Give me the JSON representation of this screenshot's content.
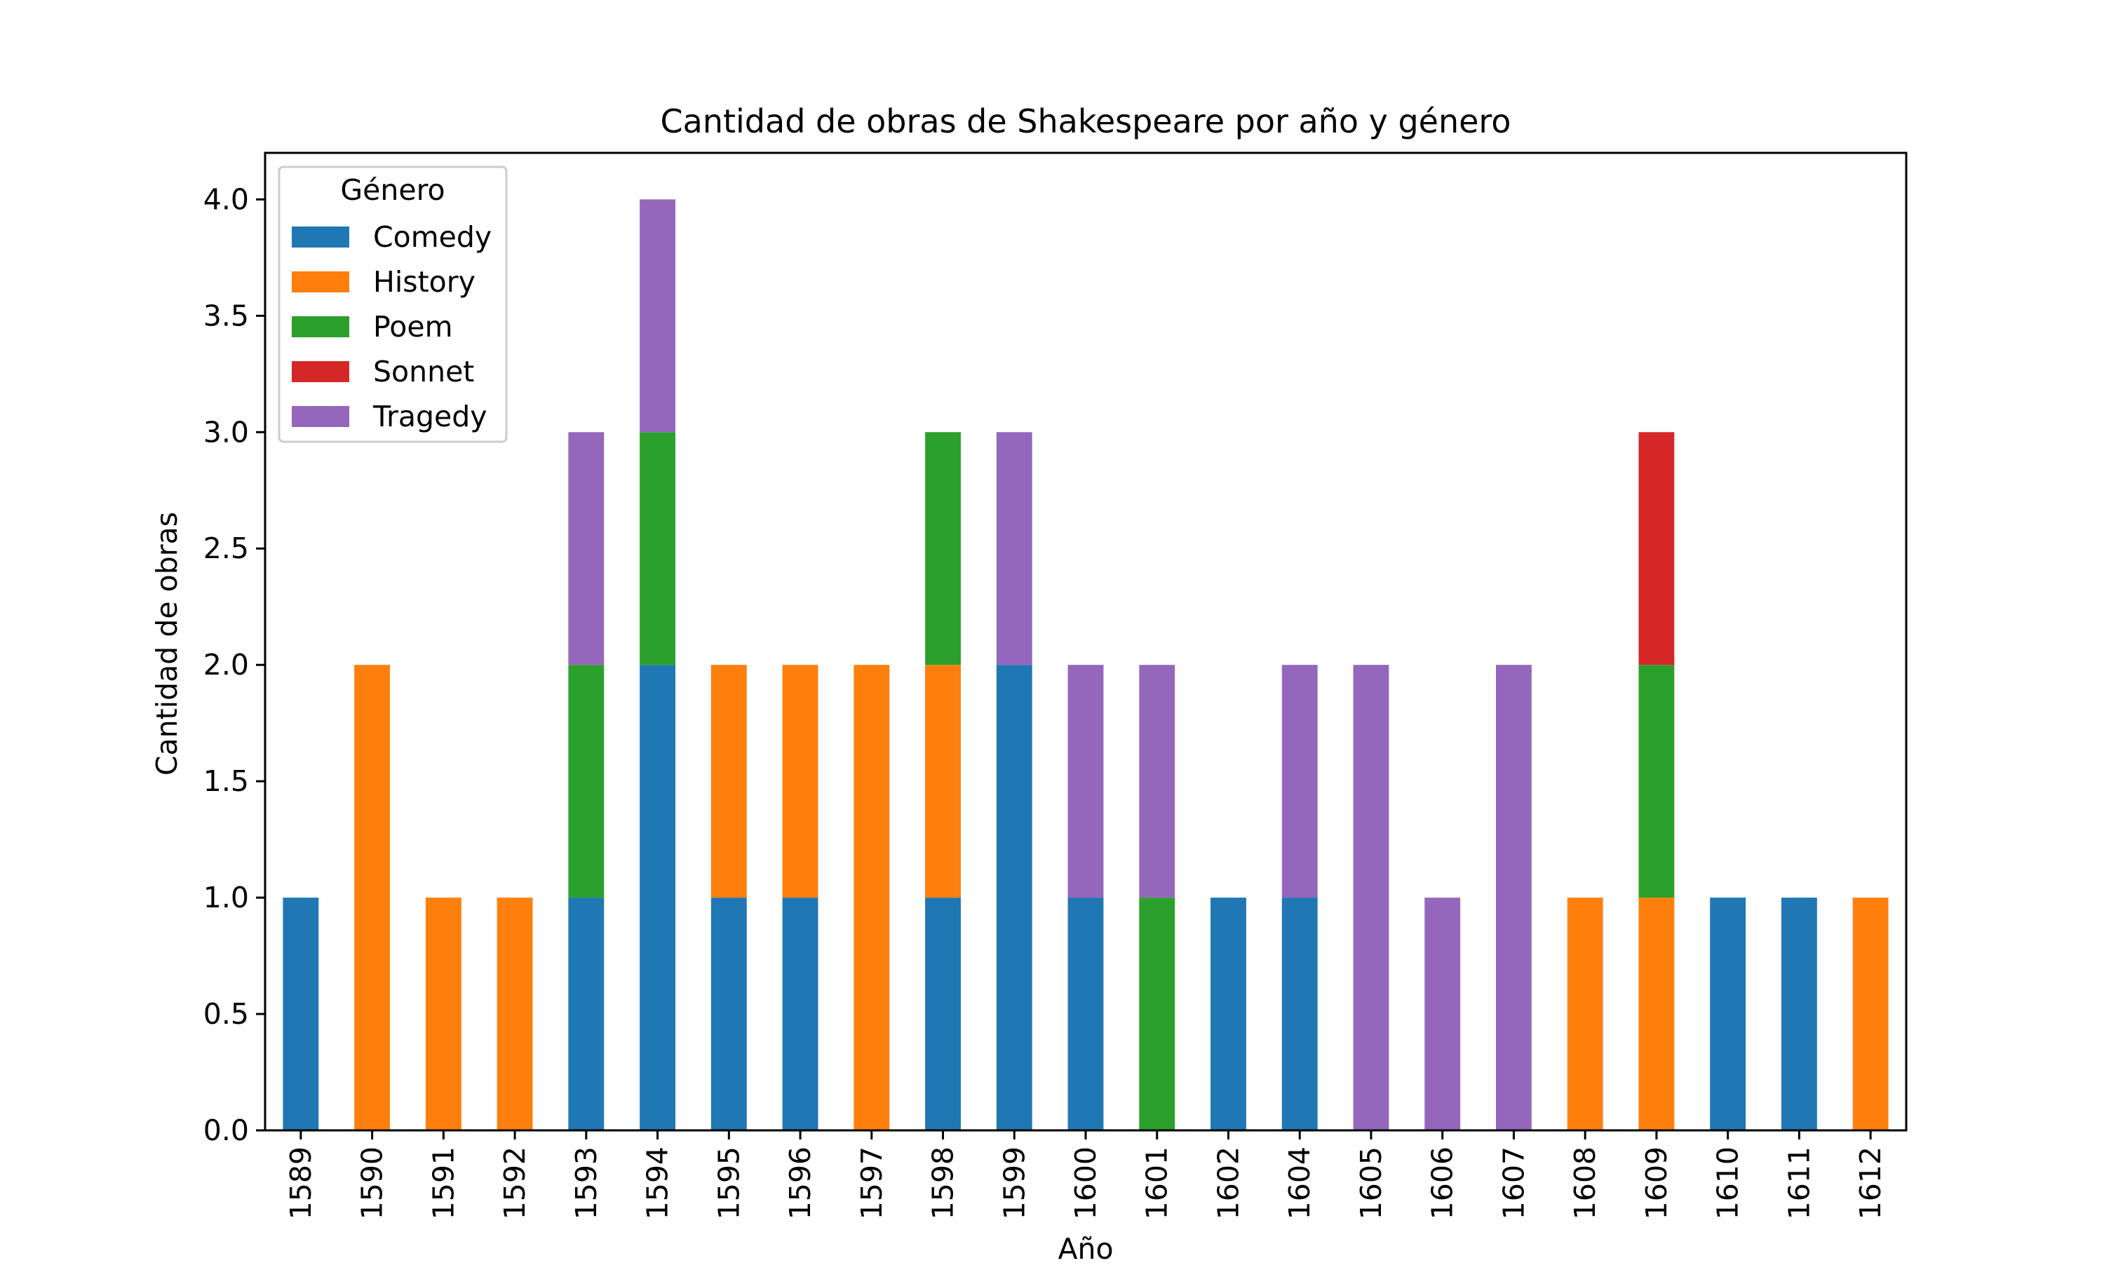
{
  "chart_data": {
    "type": "bar",
    "stacked": true,
    "title": "Cantidad de obras de Shakespeare por año y género",
    "xlabel": "Año",
    "ylabel": "Cantidad de obras",
    "ylim": [
      0,
      4.2
    ],
    "yticks": [
      "0.0",
      "0.5",
      "1.0",
      "1.5",
      "2.0",
      "2.5",
      "3.0",
      "3.5",
      "4.0"
    ],
    "grid": false,
    "legend": {
      "title": "Género",
      "placement": "top-left"
    },
    "categories": [
      "1589",
      "1590",
      "1591",
      "1592",
      "1593",
      "1594",
      "1595",
      "1596",
      "1597",
      "1598",
      "1599",
      "1600",
      "1601",
      "1602",
      "1604",
      "1605",
      "1606",
      "1607",
      "1608",
      "1609",
      "1610",
      "1611",
      "1612"
    ],
    "series": [
      {
        "name": "Comedy",
        "color": "#1f77b4",
        "values": [
          1,
          0,
          0,
          0,
          1,
          2,
          1,
          1,
          0,
          1,
          2,
          1,
          0,
          1,
          1,
          0,
          0,
          0,
          0,
          0,
          1,
          1,
          0
        ]
      },
      {
        "name": "History",
        "color": "#ff7f0e",
        "values": [
          0,
          2,
          1,
          1,
          0,
          0,
          1,
          1,
          2,
          1,
          0,
          0,
          0,
          0,
          0,
          0,
          0,
          0,
          1,
          1,
          0,
          0,
          1
        ]
      },
      {
        "name": "Poem",
        "color": "#2ca02c",
        "values": [
          0,
          0,
          0,
          0,
          1,
          1,
          0,
          0,
          0,
          1,
          0,
          0,
          1,
          0,
          0,
          0,
          0,
          0,
          0,
          1,
          0,
          0,
          0
        ]
      },
      {
        "name": "Sonnet",
        "color": "#d62728",
        "values": [
          0,
          0,
          0,
          0,
          0,
          0,
          0,
          0,
          0,
          0,
          0,
          0,
          0,
          0,
          0,
          0,
          0,
          0,
          0,
          1,
          0,
          0,
          0
        ]
      },
      {
        "name": "Tragedy",
        "color": "#9467bd",
        "values": [
          0,
          0,
          0,
          0,
          1,
          1,
          0,
          0,
          0,
          0,
          1,
          1,
          1,
          0,
          1,
          2,
          1,
          2,
          0,
          0,
          0,
          0,
          0
        ]
      }
    ]
  }
}
